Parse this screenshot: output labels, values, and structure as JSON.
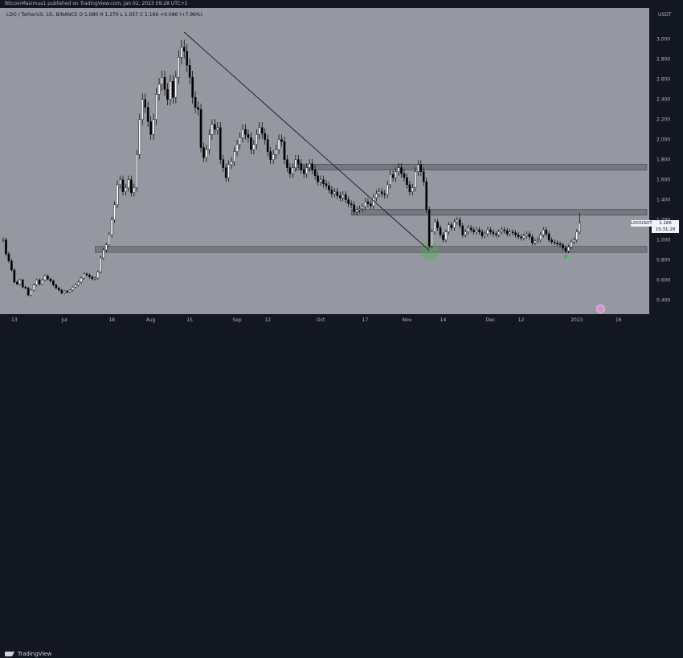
{
  "header": {
    "publisher_line": "BitcoinMaximus1 published on TradingView.com, Jan 02, 2023 09:28 UTC+1"
  },
  "legend": {
    "symbol": "LDO / TetherUS, 1D, BINANCE",
    "o": "O 1.080",
    "h": "H 1.270",
    "l": "L 1.057",
    "c": "C 1.166",
    "chg": "+0.086 (+7.96%)"
  },
  "price_axis": {
    "currency": "USDT",
    "ticker_label": "LDOUSDT",
    "current_price": "1.166",
    "countdown": "15:31:28"
  },
  "footer": {
    "brand": "TradingView"
  },
  "chart_data": {
    "type": "candlestick",
    "symbol": "LDO / TetherUS",
    "timeframe": "1D",
    "exchange": "BINANCE",
    "y_axis": {
      "label": "USDT",
      "ticks": [
        "3.000",
        "2.800",
        "2.600",
        "2.400",
        "2.200",
        "2.000",
        "1.800",
        "1.600",
        "1.400",
        "1.200",
        "1.000",
        "0.800",
        "0.600",
        "0.400"
      ],
      "range": [
        0.26,
        3.31
      ]
    },
    "x_axis": {
      "ticks": [
        "13",
        "Jul",
        "18",
        "Aug",
        "15",
        "Sep",
        "12",
        "Oct",
        "17",
        "Nov",
        "14",
        "Dec",
        "12",
        "2023",
        "16"
      ],
      "tick_dates": [
        "2022-06-13",
        "2022-07-01",
        "2022-07-18",
        "2022-08-01",
        "2022-08-15",
        "2022-09-01",
        "2022-09-12",
        "2022-10-01",
        "2022-10-17",
        "2022-11-01",
        "2022-11-14",
        "2022-12-01",
        "2022-12-12",
        "2023-01-01",
        "2023-01-16"
      ],
      "range": [
        "2022-06-09",
        "2023-01-25"
      ]
    },
    "candles": [
      {
        "d": "2022-06-09",
        "c": 1.0
      },
      {
        "d": "2022-06-10",
        "c": 0.86
      },
      {
        "d": "2022-06-11",
        "c": 0.79
      },
      {
        "d": "2022-06-12",
        "c": 0.7
      },
      {
        "d": "2022-06-13",
        "c": 0.58
      },
      {
        "d": "2022-06-14",
        "c": 0.56
      },
      {
        "d": "2022-06-15",
        "c": 0.6
      },
      {
        "d": "2022-06-16",
        "c": 0.53
      },
      {
        "d": "2022-06-17",
        "c": 0.52
      },
      {
        "d": "2022-06-18",
        "c": 0.45
      },
      {
        "d": "2022-06-19",
        "c": 0.5
      },
      {
        "d": "2022-06-20",
        "c": 0.55
      },
      {
        "d": "2022-06-21",
        "c": 0.6
      },
      {
        "d": "2022-06-22",
        "c": 0.56
      },
      {
        "d": "2022-06-23",
        "c": 0.6
      },
      {
        "d": "2022-06-24",
        "c": 0.64
      },
      {
        "d": "2022-06-25",
        "c": 0.61
      },
      {
        "d": "2022-06-26",
        "c": 0.59
      },
      {
        "d": "2022-06-27",
        "c": 0.55
      },
      {
        "d": "2022-06-28",
        "c": 0.52
      },
      {
        "d": "2022-06-29",
        "c": 0.5
      },
      {
        "d": "2022-06-30",
        "c": 0.47
      },
      {
        "d": "2022-07-01",
        "c": 0.49
      },
      {
        "d": "2022-07-02",
        "c": 0.48
      },
      {
        "d": "2022-07-03",
        "c": 0.5
      },
      {
        "d": "2022-07-04",
        "c": 0.53
      },
      {
        "d": "2022-07-05",
        "c": 0.55
      },
      {
        "d": "2022-07-06",
        "c": 0.58
      },
      {
        "d": "2022-07-07",
        "c": 0.62
      },
      {
        "d": "2022-07-08",
        "c": 0.66
      },
      {
        "d": "2022-07-09",
        "c": 0.65
      },
      {
        "d": "2022-07-10",
        "c": 0.63
      },
      {
        "d": "2022-07-11",
        "c": 0.61
      },
      {
        "d": "2022-07-12",
        "c": 0.62
      },
      {
        "d": "2022-07-13",
        "c": 0.68
      },
      {
        "d": "2022-07-14",
        "c": 0.82
      },
      {
        "d": "2022-07-15",
        "c": 0.9
      },
      {
        "d": "2022-07-16",
        "c": 0.95
      },
      {
        "d": "2022-07-17",
        "c": 1.05
      },
      {
        "d": "2022-07-18",
        "c": 1.2
      },
      {
        "d": "2022-07-19",
        "c": 1.35
      },
      {
        "d": "2022-07-20",
        "c": 1.55
      },
      {
        "d": "2022-07-21",
        "c": 1.6
      },
      {
        "d": "2022-07-22",
        "c": 1.48
      },
      {
        "d": "2022-07-23",
        "c": 1.52
      },
      {
        "d": "2022-07-24",
        "c": 1.6
      },
      {
        "d": "2022-07-25",
        "c": 1.47
      },
      {
        "d": "2022-07-26",
        "c": 1.52
      },
      {
        "d": "2022-07-27",
        "c": 1.85
      },
      {
        "d": "2022-07-28",
        "c": 2.2
      },
      {
        "d": "2022-07-29",
        "c": 2.4
      },
      {
        "d": "2022-07-30",
        "c": 2.32
      },
      {
        "d": "2022-07-31",
        "c": 2.18
      },
      {
        "d": "2022-08-01",
        "c": 2.05
      },
      {
        "d": "2022-08-02",
        "c": 2.2
      },
      {
        "d": "2022-08-03",
        "c": 2.45
      },
      {
        "d": "2022-08-04",
        "c": 2.55
      },
      {
        "d": "2022-08-05",
        "c": 2.62
      },
      {
        "d": "2022-08-06",
        "c": 2.5
      },
      {
        "d": "2022-08-07",
        "c": 2.4
      },
      {
        "d": "2022-08-08",
        "c": 2.58
      },
      {
        "d": "2022-08-09",
        "c": 2.42
      },
      {
        "d": "2022-08-10",
        "c": 2.62
      },
      {
        "d": "2022-08-11",
        "c": 2.82
      },
      {
        "d": "2022-08-12",
        "c": 2.92
      },
      {
        "d": "2022-08-13",
        "c": 2.88
      },
      {
        "d": "2022-08-14",
        "c": 2.74
      },
      {
        "d": "2022-08-15",
        "c": 2.62
      },
      {
        "d": "2022-08-16",
        "c": 2.42
      },
      {
        "d": "2022-08-17",
        "c": 2.32
      },
      {
        "d": "2022-08-18",
        "c": 2.3
      },
      {
        "d": "2022-08-19",
        "c": 1.92
      },
      {
        "d": "2022-08-20",
        "c": 1.82
      },
      {
        "d": "2022-08-21",
        "c": 1.9
      },
      {
        "d": "2022-08-22",
        "c": 2.05
      },
      {
        "d": "2022-08-23",
        "c": 2.15
      },
      {
        "d": "2022-08-24",
        "c": 2.1
      },
      {
        "d": "2022-08-25",
        "c": 2.12
      },
      {
        "d": "2022-08-26",
        "c": 1.8
      },
      {
        "d": "2022-08-27",
        "c": 1.72
      },
      {
        "d": "2022-08-28",
        "c": 1.62
      },
      {
        "d": "2022-08-29",
        "c": 1.75
      },
      {
        "d": "2022-08-30",
        "c": 1.78
      },
      {
        "d": "2022-08-31",
        "c": 1.88
      },
      {
        "d": "2022-09-01",
        "c": 1.95
      },
      {
        "d": "2022-09-02",
        "c": 2.02
      },
      {
        "d": "2022-09-03",
        "c": 2.1
      },
      {
        "d": "2022-09-04",
        "c": 2.05
      },
      {
        "d": "2022-09-05",
        "c": 2.02
      },
      {
        "d": "2022-09-06",
        "c": 1.9
      },
      {
        "d": "2022-09-07",
        "c": 1.95
      },
      {
        "d": "2022-09-08",
        "c": 2.05
      },
      {
        "d": "2022-09-09",
        "c": 2.12
      },
      {
        "d": "2022-09-10",
        "c": 2.06
      },
      {
        "d": "2022-09-11",
        "c": 2.0
      },
      {
        "d": "2022-09-12",
        "c": 1.88
      },
      {
        "d": "2022-09-13",
        "c": 1.8
      },
      {
        "d": "2022-09-14",
        "c": 1.85
      },
      {
        "d": "2022-09-15",
        "c": 1.9
      },
      {
        "d": "2022-09-16",
        "c": 2.0
      },
      {
        "d": "2022-09-17",
        "c": 1.98
      },
      {
        "d": "2022-09-18",
        "c": 1.8
      },
      {
        "d": "2022-09-19",
        "c": 1.72
      },
      {
        "d": "2022-09-20",
        "c": 1.66
      },
      {
        "d": "2022-09-21",
        "c": 1.72
      },
      {
        "d": "2022-09-22",
        "c": 1.8
      },
      {
        "d": "2022-09-23",
        "c": 1.76
      },
      {
        "d": "2022-09-24",
        "c": 1.7
      },
      {
        "d": "2022-09-25",
        "c": 1.66
      },
      {
        "d": "2022-09-26",
        "c": 1.72
      },
      {
        "d": "2022-09-27",
        "c": 1.76
      },
      {
        "d": "2022-09-28",
        "c": 1.7
      },
      {
        "d": "2022-09-29",
        "c": 1.64
      },
      {
        "d": "2022-09-30",
        "c": 1.58
      },
      {
        "d": "2022-10-01",
        "c": 1.6
      },
      {
        "d": "2022-10-02",
        "c": 1.56
      },
      {
        "d": "2022-10-03",
        "c": 1.54
      },
      {
        "d": "2022-10-04",
        "c": 1.5
      },
      {
        "d": "2022-10-05",
        "c": 1.46
      },
      {
        "d": "2022-10-06",
        "c": 1.48
      },
      {
        "d": "2022-10-07",
        "c": 1.44
      },
      {
        "d": "2022-10-08",
        "c": 1.42
      },
      {
        "d": "2022-10-09",
        "c": 1.45
      },
      {
        "d": "2022-10-10",
        "c": 1.4
      },
      {
        "d": "2022-10-11",
        "c": 1.36
      },
      {
        "d": "2022-10-12",
        "c": 1.35
      },
      {
        "d": "2022-10-13",
        "c": 1.28
      },
      {
        "d": "2022-10-14",
        "c": 1.3
      },
      {
        "d": "2022-10-15",
        "c": 1.31
      },
      {
        "d": "2022-10-16",
        "c": 1.33
      },
      {
        "d": "2022-10-17",
        "c": 1.38
      },
      {
        "d": "2022-10-18",
        "c": 1.36
      },
      {
        "d": "2022-10-19",
        "c": 1.34
      },
      {
        "d": "2022-10-20",
        "c": 1.42
      },
      {
        "d": "2022-10-21",
        "c": 1.46
      },
      {
        "d": "2022-10-22",
        "c": 1.48
      },
      {
        "d": "2022-10-23",
        "c": 1.46
      },
      {
        "d": "2022-10-24",
        "c": 1.45
      },
      {
        "d": "2022-10-25",
        "c": 1.55
      },
      {
        "d": "2022-10-26",
        "c": 1.65
      },
      {
        "d": "2022-10-27",
        "c": 1.62
      },
      {
        "d": "2022-10-28",
        "c": 1.68
      },
      {
        "d": "2022-10-29",
        "c": 1.72
      },
      {
        "d": "2022-10-30",
        "c": 1.66
      },
      {
        "d": "2022-10-31",
        "c": 1.62
      },
      {
        "d": "2022-11-01",
        "c": 1.55
      },
      {
        "d": "2022-11-02",
        "c": 1.48
      },
      {
        "d": "2022-11-03",
        "c": 1.52
      },
      {
        "d": "2022-11-04",
        "c": 1.68
      },
      {
        "d": "2022-11-05",
        "c": 1.75
      },
      {
        "d": "2022-11-06",
        "c": 1.68
      },
      {
        "d": "2022-11-07",
        "c": 1.58
      },
      {
        "d": "2022-11-08",
        "c": 1.3
      },
      {
        "d": "2022-11-09",
        "c": 0.94
      },
      {
        "d": "2022-11-10",
        "c": 1.08
      },
      {
        "d": "2022-11-11",
        "c": 1.18
      },
      {
        "d": "2022-11-12",
        "c": 1.12
      },
      {
        "d": "2022-11-13",
        "c": 1.05
      },
      {
        "d": "2022-11-14",
        "c": 1.0
      },
      {
        "d": "2022-11-15",
        "c": 1.08
      },
      {
        "d": "2022-11-16",
        "c": 1.15
      },
      {
        "d": "2022-11-17",
        "c": 1.12
      },
      {
        "d": "2022-11-18",
        "c": 1.18
      },
      {
        "d": "2022-11-19",
        "c": 1.2
      },
      {
        "d": "2022-11-20",
        "c": 1.14
      },
      {
        "d": "2022-11-21",
        "c": 1.05
      },
      {
        "d": "2022-11-22",
        "c": 1.08
      },
      {
        "d": "2022-11-23",
        "c": 1.12
      },
      {
        "d": "2022-11-24",
        "c": 1.1
      },
      {
        "d": "2022-11-25",
        "c": 1.08
      },
      {
        "d": "2022-11-26",
        "c": 1.1
      },
      {
        "d": "2022-11-27",
        "c": 1.08
      },
      {
        "d": "2022-11-28",
        "c": 1.04
      },
      {
        "d": "2022-11-29",
        "c": 1.06
      },
      {
        "d": "2022-11-30",
        "c": 1.1
      },
      {
        "d": "2022-12-01",
        "c": 1.08
      },
      {
        "d": "2022-12-02",
        "c": 1.06
      },
      {
        "d": "2022-12-03",
        "c": 1.05
      },
      {
        "d": "2022-12-04",
        "c": 1.08
      },
      {
        "d": "2022-12-05",
        "c": 1.1
      },
      {
        "d": "2022-12-06",
        "c": 1.09
      },
      {
        "d": "2022-12-07",
        "c": 1.06
      },
      {
        "d": "2022-12-08",
        "c": 1.08
      },
      {
        "d": "2022-12-09",
        "c": 1.07
      },
      {
        "d": "2022-12-10",
        "c": 1.05
      },
      {
        "d": "2022-12-11",
        "c": 1.03
      },
      {
        "d": "2022-12-12",
        "c": 1.02
      },
      {
        "d": "2022-12-13",
        "c": 1.04
      },
      {
        "d": "2022-12-14",
        "c": 1.06
      },
      {
        "d": "2022-12-15",
        "c": 1.03
      },
      {
        "d": "2022-12-16",
        "c": 0.97
      },
      {
        "d": "2022-12-17",
        "c": 0.99
      },
      {
        "d": "2022-12-18",
        "c": 1.0
      },
      {
        "d": "2022-12-19",
        "c": 1.05
      },
      {
        "d": "2022-12-20",
        "c": 1.1
      },
      {
        "d": "2022-12-21",
        "c": 1.06
      },
      {
        "d": "2022-12-22",
        "c": 1.0
      },
      {
        "d": "2022-12-23",
        "c": 0.98
      },
      {
        "d": "2022-12-24",
        "c": 0.97
      },
      {
        "d": "2022-12-25",
        "c": 0.96
      },
      {
        "d": "2022-12-26",
        "c": 0.95
      },
      {
        "d": "2022-12-27",
        "c": 0.92
      },
      {
        "d": "2022-12-28",
        "c": 0.89
      },
      {
        "d": "2022-12-29",
        "c": 0.93
      },
      {
        "d": "2022-12-30",
        "c": 0.98
      },
      {
        "d": "2022-12-31",
        "c": 1.0
      },
      {
        "d": "2023-01-01",
        "c": 1.08
      },
      {
        "d": "2023-01-02",
        "o": 1.08,
        "h": 1.27,
        "l": 1.057,
        "c": 1.166
      }
    ],
    "horizontal_zones": [
      {
        "from": 0.875,
        "to": 0.935
      },
      {
        "from": 1.245,
        "to": 1.305
      },
      {
        "from": 1.695,
        "to": 1.755
      }
    ],
    "trendline": {
      "from": {
        "d": "2022-08-13",
        "price": 3.07
      },
      "to": {
        "d": "2022-11-09",
        "price": 0.895
      }
    },
    "markers": [
      {
        "type": "circle",
        "d": "2022-11-09",
        "price": 0.89,
        "color": "#4caf50"
      },
      {
        "type": "arrow-up",
        "d": "2022-12-28",
        "price": 0.84,
        "color": "#4caf50"
      }
    ],
    "colors": {
      "background": "#9598a1",
      "up": "#ffffff",
      "down": "#000000",
      "zone": "#6b6e76",
      "trendline": "#131722"
    },
    "grid": false
  }
}
